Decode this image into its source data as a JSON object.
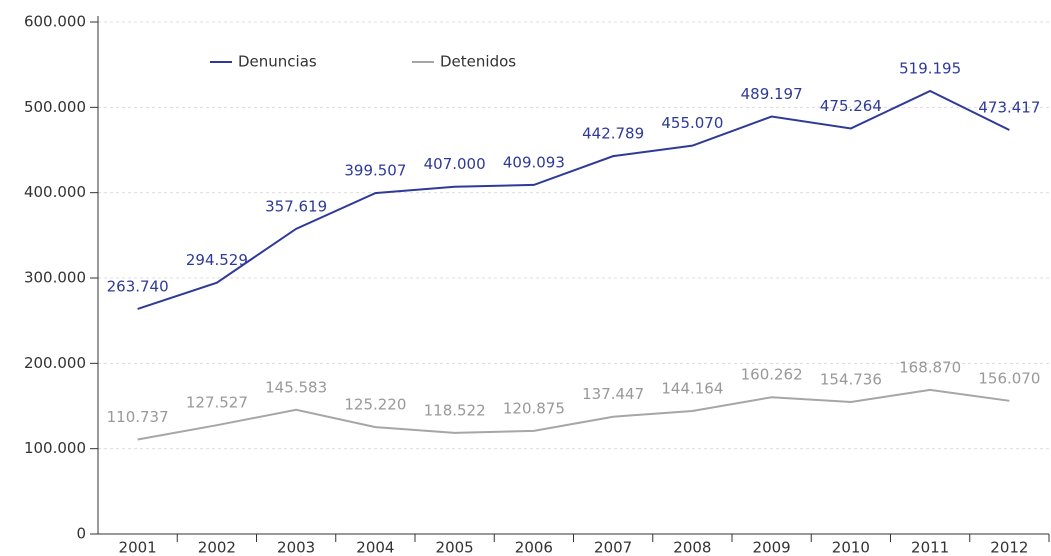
{
  "chart_data": {
    "type": "line",
    "categories": [
      "2001",
      "2002",
      "2003",
      "2004",
      "2005",
      "2006",
      "2007",
      "2008",
      "2009",
      "2010",
      "2011",
      "2012"
    ],
    "series": [
      {
        "name": "Denuncias",
        "color": "#2e3a97",
        "values": [
          263740,
          294529,
          357619,
          399507,
          407000,
          409093,
          442789,
          455070,
          489197,
          475264,
          519195,
          473417
        ],
        "value_labels": [
          "263.740",
          "294.529",
          "357.619",
          "399.507",
          "407.000",
          "409.093",
          "442.789",
          "455.070",
          "489.197",
          "475.264",
          "519.195",
          "473.417"
        ]
      },
      {
        "name": "Detenidos",
        "color": "#a6a6a6",
        "values": [
          110737,
          127527,
          145583,
          125220,
          118522,
          120875,
          137447,
          144164,
          160262,
          154736,
          168870,
          156070
        ],
        "value_labels": [
          "110.737",
          "127.527",
          "145.583",
          "125.220",
          "118.522",
          "120.875",
          "137.447",
          "144.164",
          "160.262",
          "154.736",
          "168.870",
          "156.070"
        ]
      }
    ],
    "ylim": [
      0,
      600000
    ],
    "yticks": [
      0,
      {
        "value": 100000,
        "label": "100.000"
      },
      {
        "value": 200000,
        "label": "200.000"
      },
      {
        "value": 300000,
        "label": "300.000"
      },
      {
        "value": 400000,
        "label": "400.000"
      },
      {
        "value": 500000,
        "label": "500.000"
      },
      {
        "value": 600000,
        "label": "600.000"
      }
    ],
    "grid": true,
    "legend": "top-left"
  }
}
